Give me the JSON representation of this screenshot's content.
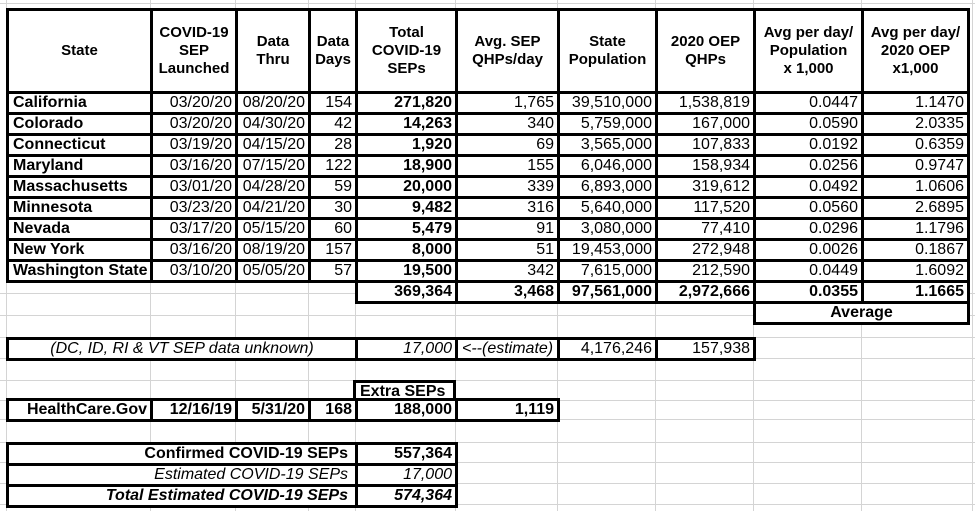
{
  "table": {
    "headers": [
      "State",
      "COVID-19\nSEP\nLaunched",
      "Data\nThru",
      "Data\nDays",
      "Total\nCOVID-19\nSEPs",
      "Avg. SEP\nQHPs/day",
      "State\nPopulation",
      "2020 OEP\nQHPs",
      "Avg per day/\nPopulation\nx 1,000",
      "Avg per day/\n2020 OEP\nx1,000"
    ],
    "rows": [
      [
        "California",
        "03/20/20",
        "08/20/20",
        "154",
        "271,820",
        "1,765",
        "39,510,000",
        "1,538,819",
        "0.0447",
        "1.1470"
      ],
      [
        "Colorado",
        "03/20/20",
        "04/30/20",
        "42",
        "14,263",
        "340",
        "5,759,000",
        "167,000",
        "0.0590",
        "2.0335"
      ],
      [
        "Connecticut",
        "03/19/20",
        "04/15/20",
        "28",
        "1,920",
        "69",
        "3,565,000",
        "107,833",
        "0.0192",
        "0.6359"
      ],
      [
        "Maryland",
        "03/16/20",
        "07/15/20",
        "122",
        "18,900",
        "155",
        "6,046,000",
        "158,934",
        "0.0256",
        "0.9747"
      ],
      [
        "Massachusetts",
        "03/01/20",
        "04/28/20",
        "59",
        "20,000",
        "339",
        "6,893,000",
        "319,612",
        "0.0492",
        "1.0606"
      ],
      [
        "Minnesota",
        "03/23/20",
        "04/21/20",
        "30",
        "9,482",
        "316",
        "5,640,000",
        "117,520",
        "0.0560",
        "2.6895"
      ],
      [
        "Nevada",
        "03/17/20",
        "05/15/20",
        "60",
        "5,479",
        "91",
        "3,080,000",
        "77,410",
        "0.0296",
        "1.1796"
      ],
      [
        "New York",
        "03/16/20",
        "08/19/20",
        "157",
        "8,000",
        "51",
        "19,453,000",
        "272,948",
        "0.0026",
        "0.1867"
      ],
      [
        "Washington State",
        "03/10/20",
        "05/05/20",
        "57",
        "19,500",
        "342",
        "7,615,000",
        "212,590",
        "0.0449",
        "1.6092"
      ]
    ],
    "totals": [
      "369,364",
      "3,468",
      "97,561,000",
      "2,972,666",
      "0.0355",
      "1.1665"
    ],
    "average_label": "Average"
  },
  "unknown_row": {
    "label": "(DC, ID, RI & VT SEP data unknown)",
    "seps": "17,000",
    "note": "<--(estimate)",
    "population": "4,176,246",
    "oep_qhps": "157,938"
  },
  "extra_seps": {
    "header": "Extra SEPs",
    "row": [
      "HealthCare.Gov",
      "12/16/19",
      "5/31/20",
      "168",
      "188,000",
      "1,119"
    ]
  },
  "summary": [
    {
      "label": "Confirmed COVID-19 SEPs",
      "value": "557,364",
      "style": "bold"
    },
    {
      "label": "Estimated COVID-19 SEPs",
      "value": "17,000",
      "style": "italic"
    },
    {
      "label": "Total Estimated COVID-19 SEPs",
      "value": "574,364",
      "style": "bold-italic"
    }
  ]
}
